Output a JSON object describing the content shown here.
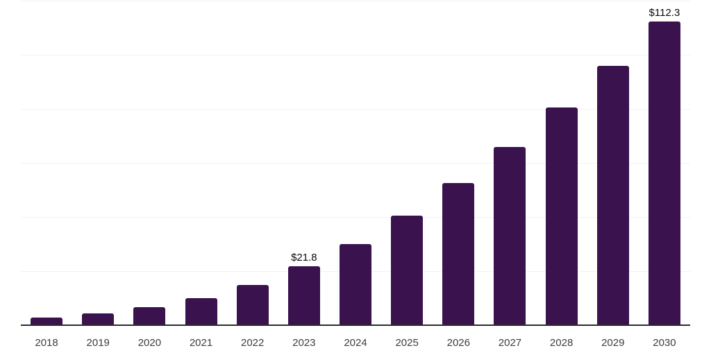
{
  "chart_data": {
    "type": "bar",
    "title": "",
    "xlabel": "",
    "ylabel": "",
    "categories": [
      "2018",
      "2019",
      "2020",
      "2021",
      "2022",
      "2023",
      "2024",
      "2025",
      "2026",
      "2027",
      "2028",
      "2029",
      "2030"
    ],
    "values": [
      2.7,
      4.3,
      6.7,
      9.9,
      14.9,
      21.8,
      30.0,
      40.5,
      52.5,
      65.8,
      80.5,
      96.0,
      112.3
    ],
    "annotations": [
      {
        "category": "2023",
        "label": "$21.8"
      },
      {
        "category": "2030",
        "label": "$112.3"
      }
    ],
    "ylim": [
      0,
      120
    ],
    "grid_step": 20,
    "grid": true,
    "legend": false,
    "y_axis_labels_visible": false,
    "colors": {
      "bar": "#39124E",
      "axis_line": "#2b2b2b",
      "gridline": "#f2f2f2",
      "tick_label": "#3d3d3d",
      "annotation": "#0a0a0a",
      "background": "#ffffff"
    }
  }
}
